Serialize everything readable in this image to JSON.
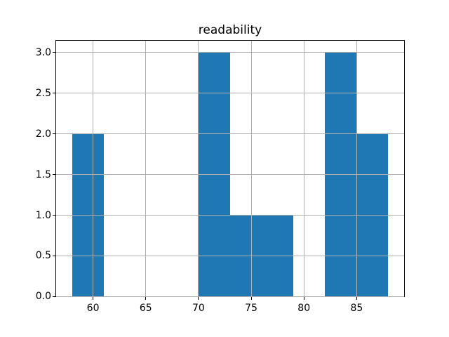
{
  "figure": {
    "title": "readability"
  },
  "chart_data": {
    "type": "bar",
    "subtype": "histogram",
    "title": "readability",
    "xlabel": "",
    "ylabel": "",
    "bin_edges": [
      58,
      61,
      64,
      67,
      70,
      73,
      76,
      79,
      82,
      85,
      88
    ],
    "counts": [
      2,
      0,
      0,
      0,
      3,
      1,
      1,
      0,
      3,
      2
    ],
    "xticks": {
      "values": [
        60,
        65,
        70,
        75,
        80,
        85
      ],
      "labels": [
        "60",
        "65",
        "70",
        "75",
        "80",
        "85"
      ]
    },
    "yticks": {
      "values": [
        0.0,
        0.5,
        1.0,
        1.5,
        2.0,
        2.5,
        3.0
      ],
      "labels": [
        "0.0",
        "0.5",
        "1.0",
        "1.5",
        "2.0",
        "2.5",
        "3.0"
      ]
    },
    "xlim": [
      56.5,
      89.5
    ],
    "ylim": [
      0,
      3.15
    ],
    "grid": true,
    "grid_position": "above-bars",
    "legend": "none",
    "colors": {
      "bar": "#1f77b4",
      "grid": "#b0b0b0",
      "spine": "#000000",
      "tick": "#000000",
      "background": "#ffffff"
    }
  }
}
